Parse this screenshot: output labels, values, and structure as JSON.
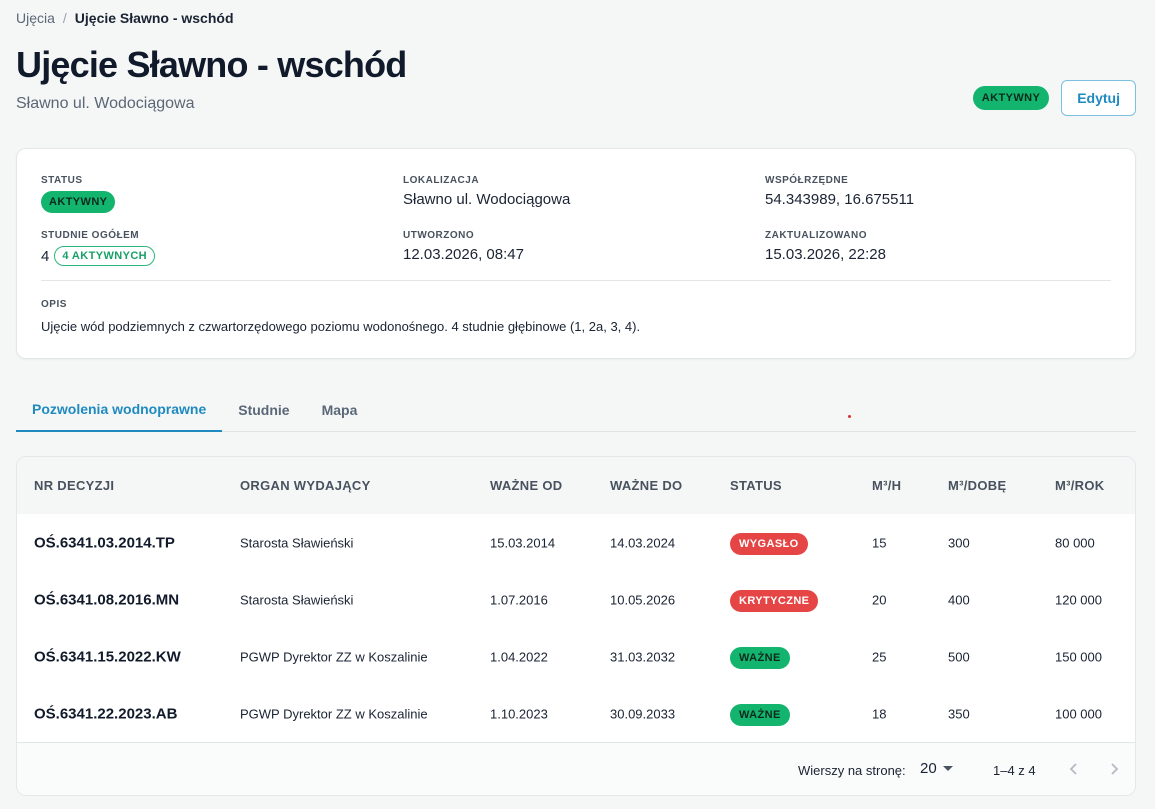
{
  "breadcrumb": {
    "parent": "Ujęcia",
    "separator": "/",
    "current": "Ujęcie Sławno - wschód"
  },
  "header": {
    "title": "Ujęcie Sławno - wschód",
    "subtitle": "Sławno ul. Wodociągowa",
    "status_badge": "AKTYWNY",
    "edit_label": "Edytuj"
  },
  "info": {
    "status_label": "STATUS",
    "status_value": "AKTYWNY",
    "location_label": "LOKALIZACJA",
    "location_value": "Sławno ul. Wodociągowa",
    "coords_label": "WSPÓŁRZĘDNE",
    "coords_value": "54.343989, 16.675511",
    "wells_label": "STUDNIE OGÓŁEM",
    "wells_count": "4",
    "wells_active": "4 AKTYWNYCH",
    "created_label": "UTWORZONO",
    "created_value": "12.03.2026, 08:47",
    "updated_label": "ZAKTUALIZOWANO",
    "updated_value": "15.03.2026, 22:28",
    "desc_label": "OPIS",
    "desc_value": "Ujęcie wód podziemnych z czwartorzędowego poziomu wodonośnego. 4 studnie głębinowe (1, 2a, 3, 4)."
  },
  "tabs": [
    "Pozwolenia wodnoprawne",
    "Studnie",
    "Mapa"
  ],
  "table": {
    "headers": [
      "NR DECYZJI",
      "ORGAN WYDAJĄCY",
      "WAŻNE OD",
      "WAŻNE DO",
      "STATUS",
      "M³/H",
      "M³/DOBĘ",
      "M³/ROK"
    ],
    "rows": [
      [
        "OŚ.6341.03.2014.TP",
        "Starosta Sławieński",
        "15.03.2014",
        "14.03.2024",
        "WYGASŁO",
        "15",
        "300",
        "80 000"
      ],
      [
        "OŚ.6341.08.2016.MN",
        "Starosta Sławieński",
        "1.07.2016",
        "10.05.2026",
        "KRYTYCZNE",
        "20",
        "400",
        "120 000"
      ],
      [
        "OŚ.6341.15.2022.KW",
        "PGWP Dyrektor ZZ w Koszalinie",
        "1.04.2022",
        "31.03.2032",
        "WAŻNE",
        "25",
        "500",
        "150 000"
      ],
      [
        "OŚ.6341.22.2023.AB",
        "PGWP Dyrektor ZZ w Koszalinie",
        "1.10.2023",
        "30.09.2033",
        "WAŻNE",
        "18",
        "350",
        "100 000"
      ]
    ]
  },
  "pagination": {
    "rows_per_page_label": "Wierszy na stronę:",
    "rows_per_page": "20",
    "range": "1–4 z 4"
  },
  "colors": {
    "accent": "#1f8ac0",
    "active_green": "#12b46e",
    "danger_red": "#e64545"
  },
  "icons": [
    "chevron-down-icon",
    "chevron-left-icon",
    "chevron-right-icon"
  ]
}
